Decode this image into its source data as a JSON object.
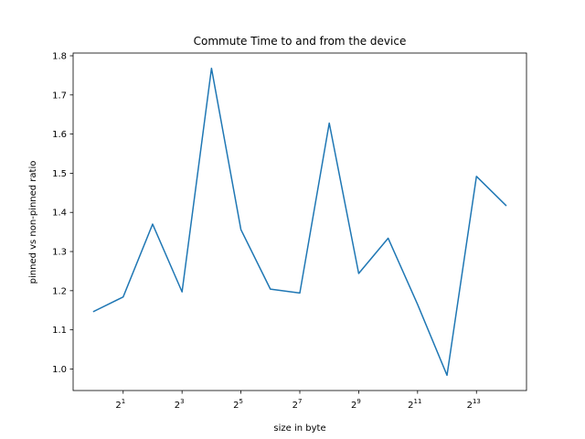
{
  "chart_data": {
    "type": "line",
    "title": "Commute Time to and from the device",
    "xlabel": "size in byte",
    "ylabel": "pinned vs non-pinned ratio",
    "x_scale": "log2",
    "x": [
      1,
      2,
      4,
      8,
      16,
      32,
      64,
      128,
      256,
      512,
      1024,
      2048,
      4096,
      8192,
      16384
    ],
    "series": [
      {
        "values": [
          1.147,
          1.184,
          1.37,
          1.197,
          1.768,
          1.356,
          1.204,
          1.194,
          1.628,
          1.244,
          1.334,
          1.165,
          0.984,
          1.492,
          1.418
        ],
        "color": "#1f77b4"
      }
    ],
    "x_ticks": [
      {
        "base": "2",
        "exp": "1",
        "value": 2
      },
      {
        "base": "2",
        "exp": "3",
        "value": 8
      },
      {
        "base": "2",
        "exp": "5",
        "value": 32
      },
      {
        "base": "2",
        "exp": "7",
        "value": 128
      },
      {
        "base": "2",
        "exp": "9",
        "value": 512
      },
      {
        "base": "2",
        "exp": "11",
        "value": 2048
      },
      {
        "base": "2",
        "exp": "13",
        "value": 8192
      }
    ],
    "y_ticks": [
      "1.0",
      "1.1",
      "1.2",
      "1.3",
      "1.4",
      "1.5",
      "1.6",
      "1.7",
      "1.8"
    ],
    "xlim_log2": [
      -0.7,
      14.7
    ],
    "ylim": [
      0.945,
      1.807
    ],
    "grid": false,
    "legend": false
  }
}
